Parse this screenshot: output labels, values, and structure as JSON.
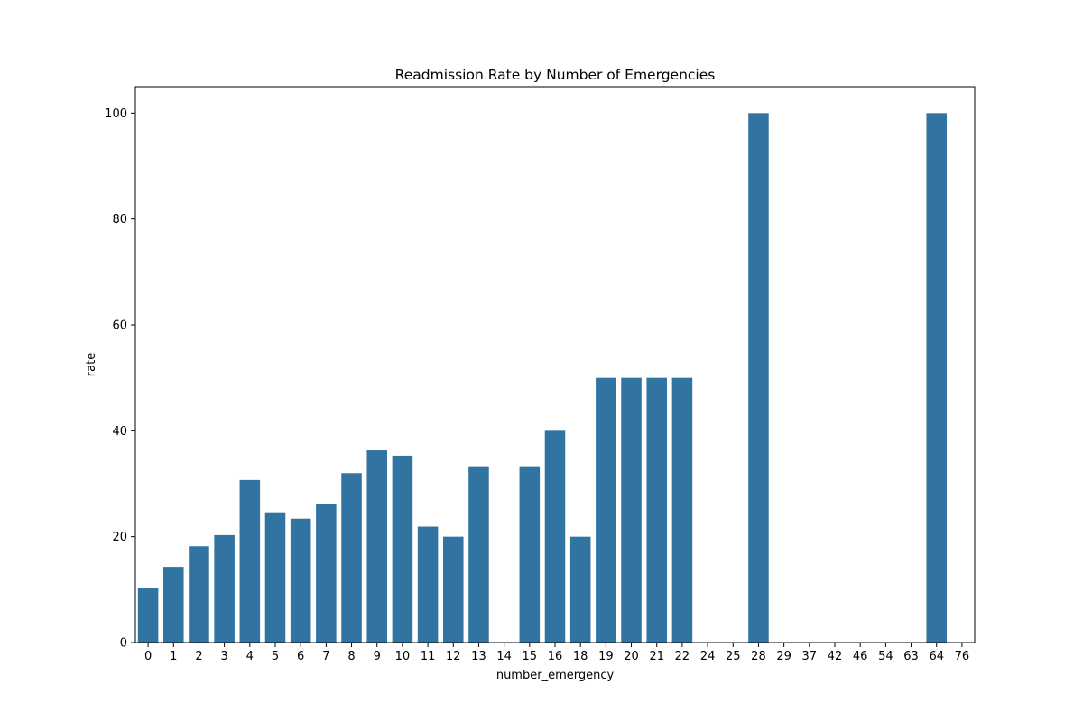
{
  "chart_data": {
    "type": "bar",
    "title": "Readmission Rate by Number of Emergencies",
    "xlabel": "number_emergency",
    "ylabel": "rate",
    "categories": [
      "0",
      "1",
      "2",
      "3",
      "4",
      "5",
      "6",
      "7",
      "8",
      "9",
      "10",
      "11",
      "12",
      "13",
      "14",
      "15",
      "16",
      "18",
      "19",
      "20",
      "21",
      "22",
      "24",
      "25",
      "28",
      "29",
      "37",
      "42",
      "46",
      "54",
      "63",
      "64",
      "76"
    ],
    "values": [
      10.4,
      14.3,
      18.2,
      20.3,
      30.7,
      24.6,
      23.4,
      26.1,
      32.0,
      36.3,
      35.3,
      21.9,
      20.0,
      33.3,
      0,
      33.3,
      40.0,
      20.0,
      50.0,
      50.0,
      50.0,
      50.0,
      0,
      0,
      100.0,
      0,
      0,
      0,
      0,
      0,
      0,
      100.0,
      0
    ],
    "ylim": [
      0,
      105
    ],
    "yticks": [
      0,
      20,
      40,
      60,
      80,
      100
    ],
    "grid": false,
    "colors": {
      "bar": "#3274a1"
    }
  }
}
